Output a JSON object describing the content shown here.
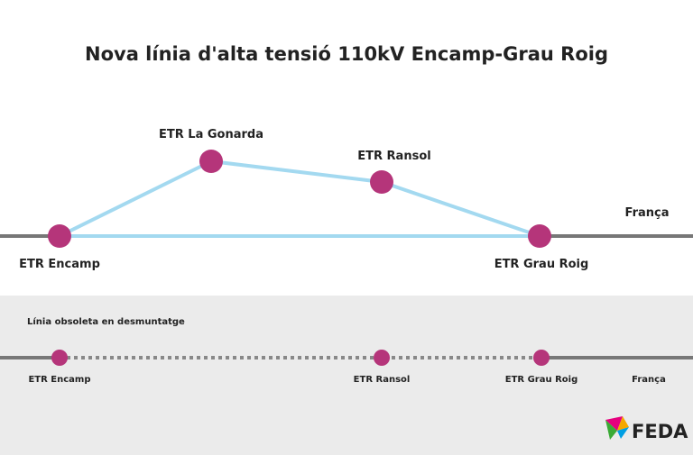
{
  "header": {
    "title": "Nova línia d'alta tensió 110kV Encamp-Grau Roig"
  },
  "new_line": {
    "nodes": [
      {
        "label": "ETR Encamp"
      },
      {
        "label": "ETR La Gonarda"
      },
      {
        "label": "ETR Ransol"
      },
      {
        "label": "ETR Grau Roig"
      }
    ],
    "border_label": "França"
  },
  "old_line": {
    "title": "Línia obsoleta en desmuntatge",
    "nodes": [
      {
        "label": "ETR Encamp"
      },
      {
        "label": "ETR Ransol"
      },
      {
        "label": "ETR Grau Roig"
      }
    ],
    "border_label": "França"
  },
  "logo": {
    "text": "FEDA"
  }
}
